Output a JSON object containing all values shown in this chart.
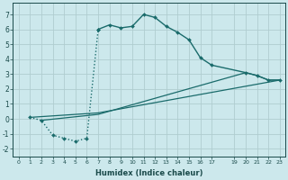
{
  "xlabel": "Humidex (Indice chaleur)",
  "bg_color": "#cce8ec",
  "grid_color": "#b0cdd0",
  "line_color": "#1a6b6b",
  "xlim": [
    -0.5,
    23.5
  ],
  "ylim": [
    -2.5,
    7.8
  ],
  "yticks": [
    -2,
    -1,
    0,
    1,
    2,
    3,
    4,
    5,
    6,
    7
  ],
  "xticks": [
    0,
    1,
    2,
    3,
    4,
    5,
    6,
    7,
    8,
    9,
    10,
    11,
    12,
    13,
    14,
    15,
    16,
    17,
    19,
    20,
    21,
    22,
    23
  ],
  "dotted_x": [
    1,
    2,
    3,
    4,
    5,
    6,
    7
  ],
  "dotted_y": [
    0.1,
    -0.1,
    -1.1,
    -1.3,
    -1.5,
    -1.3,
    6.0
  ],
  "main_x": [
    7,
    8,
    9,
    10,
    11,
    12,
    13,
    14,
    15,
    16,
    17,
    20,
    21,
    22,
    23
  ],
  "main_y": [
    6.0,
    6.3,
    6.1,
    6.2,
    7.0,
    6.8,
    6.2,
    5.8,
    5.3,
    4.1,
    3.6,
    3.1,
    2.9,
    2.6,
    2.6
  ],
  "line1_x": [
    1,
    7,
    23
  ],
  "line1_y": [
    0.1,
    0.4,
    2.6
  ],
  "line2_x": [
    2,
    7,
    20,
    21,
    22,
    23
  ],
  "line2_y": [
    -0.1,
    0.3,
    3.1,
    2.9,
    2.6,
    2.6
  ]
}
